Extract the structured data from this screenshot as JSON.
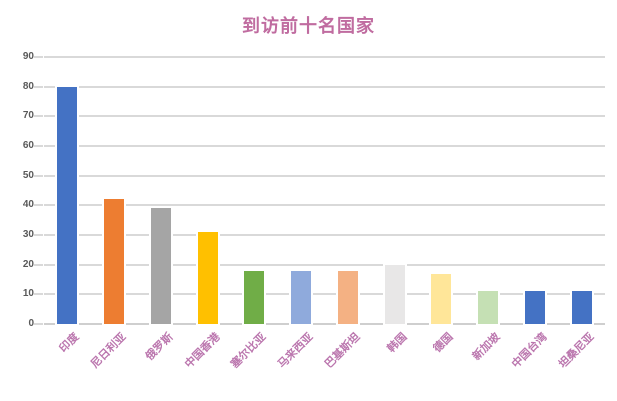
{
  "chart_data": {
    "type": "bar",
    "title": "到访前十名国家",
    "categories": [
      "印度",
      "尼日利亚",
      "俄罗斯",
      "中国香港",
      "塞尔比亚",
      "马来西亚",
      "巴基斯坦",
      "韩国",
      "德国",
      "新加坡",
      "中国台湾",
      "坦桑尼亚"
    ],
    "values": [
      80,
      42,
      39,
      31,
      18,
      18,
      18,
      20,
      17,
      11,
      11,
      11
    ],
    "bar_colors": [
      "#4472C4",
      "#ED7D31",
      "#A5A5A5",
      "#FFC000",
      "#70AD47",
      "#8FAADC",
      "#F4B183",
      "#E8E7E7",
      "#FFE699",
      "#C5E0B4",
      "#4472C4",
      "#4472C4"
    ],
    "xlabel": "",
    "ylabel": "",
    "ylim": [
      0,
      90
    ],
    "yticks": [
      0,
      10,
      20,
      30,
      40,
      50,
      60,
      70,
      80,
      90
    ],
    "grid": true,
    "legend": false
  },
  "colors": {
    "background": "#FFFFFF",
    "title": "#C06CA0",
    "category_label": "#BB76AE",
    "axis_label": "#595959",
    "gridline": "#D9D9D9",
    "baseline": "#CFCFCF",
    "bar_outline": "#FFFFFF"
  }
}
